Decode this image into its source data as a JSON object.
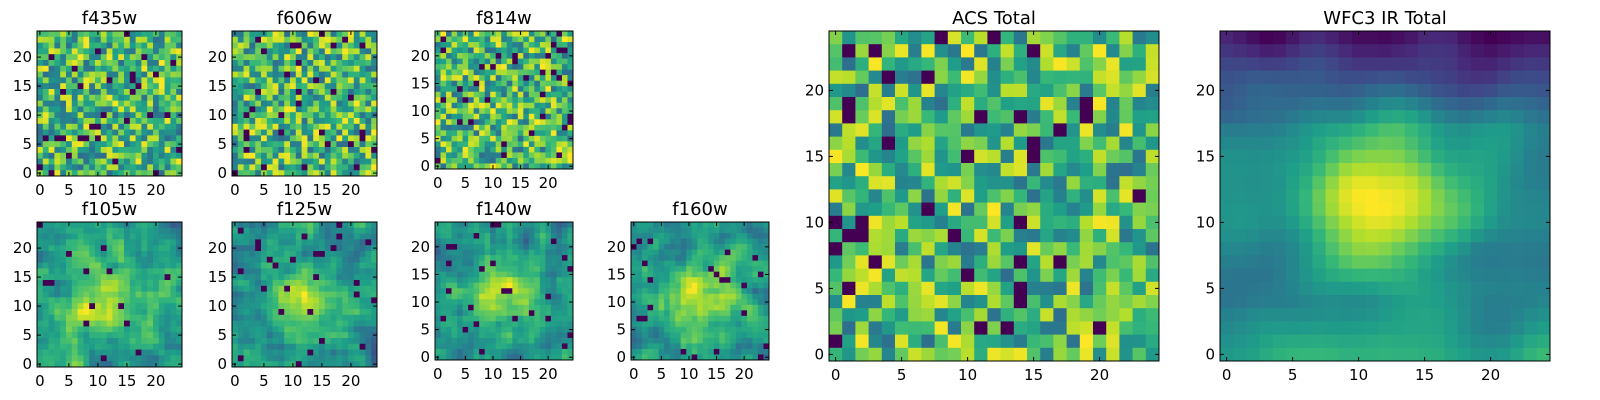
{
  "chart_data": [
    {
      "type": "heatmap",
      "title": "f435w",
      "xticks": [
        "0",
        "5",
        "10",
        "15",
        "20"
      ],
      "yticks": [
        "0",
        "5",
        "10",
        "15",
        "20"
      ],
      "grid_size": 25,
      "colormap": "viridis",
      "texture": "noise",
      "seed": 11,
      "center_boost": 0.0
    },
    {
      "type": "heatmap",
      "title": "f606w",
      "xticks": [
        "0",
        "5",
        "10",
        "15",
        "20"
      ],
      "yticks": [
        "0",
        "5",
        "10",
        "15",
        "20"
      ],
      "grid_size": 25,
      "colormap": "viridis",
      "texture": "noise",
      "seed": 23,
      "center_boost": 0.0
    },
    {
      "type": "heatmap",
      "title": "f814w",
      "xticks": [
        "0",
        "5",
        "10",
        "15",
        "20"
      ],
      "yticks": [
        "0",
        "5",
        "10",
        "15",
        "20"
      ],
      "grid_size": 25,
      "colormap": "viridis",
      "texture": "noise",
      "seed": 37,
      "center_boost": 0.0
    },
    {
      "type": "heatmap",
      "title": "f105w",
      "xticks": [
        "0",
        "5",
        "10",
        "15",
        "20"
      ],
      "yticks": [
        "0",
        "5",
        "10",
        "15",
        "20"
      ],
      "grid_size": 25,
      "colormap": "viridis",
      "texture": "blob",
      "seed": 41,
      "center_boost": 0.3
    },
    {
      "type": "heatmap",
      "title": "f125w",
      "xticks": [
        "0",
        "5",
        "10",
        "15",
        "20"
      ],
      "yticks": [
        "0",
        "5",
        "10",
        "15",
        "20"
      ],
      "grid_size": 25,
      "colormap": "viridis",
      "texture": "blob",
      "seed": 53,
      "center_boost": 0.35
    },
    {
      "type": "heatmap",
      "title": "f140w",
      "xticks": [
        "0",
        "5",
        "10",
        "15",
        "20"
      ],
      "yticks": [
        "0",
        "5",
        "10",
        "15",
        "20"
      ],
      "grid_size": 25,
      "colormap": "viridis",
      "texture": "blob",
      "seed": 67,
      "center_boost": 0.35
    },
    {
      "type": "heatmap",
      "title": "f160w",
      "xticks": [
        "0",
        "5",
        "10",
        "15",
        "20"
      ],
      "yticks": [
        "0",
        "5",
        "10",
        "15",
        "20"
      ],
      "grid_size": 25,
      "colormap": "viridis",
      "texture": "blob",
      "seed": 79,
      "center_boost": 0.4
    },
    {
      "type": "heatmap",
      "title": "ACS Total",
      "xticks": [
        "0",
        "5",
        "10",
        "15",
        "20"
      ],
      "yticks": [
        "0",
        "5",
        "10",
        "15",
        "20"
      ],
      "grid_size": 25,
      "colormap": "viridis",
      "texture": "noise",
      "seed": 83,
      "center_boost": 0.0
    },
    {
      "type": "heatmap",
      "title": "WFC3 IR Total",
      "xticks": [
        "0",
        "5",
        "10",
        "15",
        "20"
      ],
      "yticks": [
        "0",
        "5",
        "10",
        "15",
        "20"
      ],
      "grid_size": 25,
      "colormap": "viridis",
      "texture": "smoothblob",
      "seed": 97,
      "center_boost": 0.55
    }
  ]
}
